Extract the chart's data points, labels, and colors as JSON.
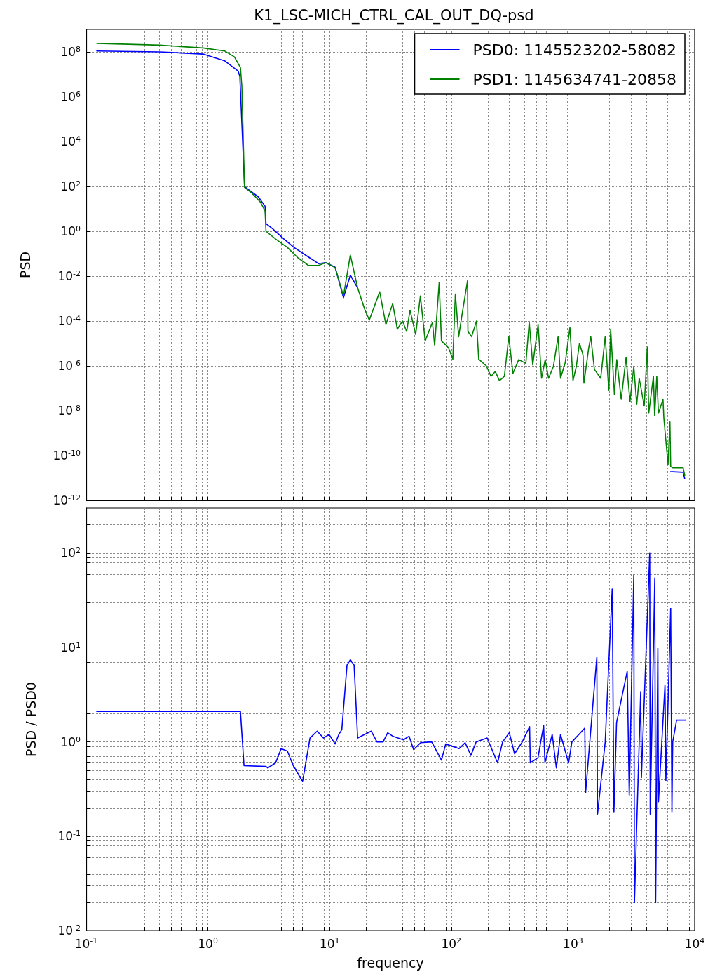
{
  "chart_data": [
    {
      "type": "line",
      "title": "K1_LSC-MICH_CTRL_CAL_OUT_DQ-psd",
      "ylabel": "PSD",
      "log": "xy",
      "grid": true,
      "legend": "top right",
      "tick_labels": "y",
      "xlim": [
        0.1,
        10000
      ],
      "ylim": [
        1e-12,
        1000000000.0
      ],
      "xticks": [
        {
          "value": 0.1,
          "label": null
        },
        {
          "value": 0.2,
          "label": null
        },
        {
          "value": 0.3,
          "label": null
        },
        {
          "value": 0.4,
          "label": null
        },
        {
          "value": 0.5,
          "label": null
        },
        {
          "value": 0.6,
          "label": null
        },
        {
          "value": 0.7,
          "label": null
        },
        {
          "value": 0.8,
          "label": null
        },
        {
          "value": 0.9,
          "label": null
        },
        {
          "value": 1,
          "label": null
        },
        {
          "value": 2,
          "label": null
        },
        {
          "value": 3,
          "label": null
        },
        {
          "value": 4,
          "label": null
        },
        {
          "value": 5,
          "label": null
        },
        {
          "value": 6,
          "label": null
        },
        {
          "value": 7,
          "label": null
        },
        {
          "value": 8,
          "label": null
        },
        {
          "value": 9,
          "label": null
        },
        {
          "value": 10,
          "label": null
        },
        {
          "value": 20,
          "label": null
        },
        {
          "value": 30,
          "label": null
        },
        {
          "value": 40,
          "label": null
        },
        {
          "value": 50,
          "label": null
        },
        {
          "value": 60,
          "label": null
        },
        {
          "value": 70,
          "label": null
        },
        {
          "value": 80,
          "label": null
        },
        {
          "value": 90,
          "label": null
        },
        {
          "value": 100,
          "label": null
        },
        {
          "value": 200,
          "label": null
        },
        {
          "value": 300,
          "label": null
        },
        {
          "value": 400,
          "label": null
        },
        {
          "value": 500,
          "label": null
        },
        {
          "value": 600,
          "label": null
        },
        {
          "value": 700,
          "label": null
        },
        {
          "value": 800,
          "label": null
        },
        {
          "value": 900,
          "label": null
        },
        {
          "value": 1000,
          "label": null
        },
        {
          "value": 2000,
          "label": null
        },
        {
          "value": 3000,
          "label": null
        },
        {
          "value": 4000,
          "label": null
        },
        {
          "value": 5000,
          "label": null
        },
        {
          "value": 6000,
          "label": null
        },
        {
          "value": 7000,
          "label": null
        },
        {
          "value": 8000,
          "label": null
        },
        {
          "value": 9000,
          "label": null
        },
        {
          "value": 10000,
          "label": null
        }
      ],
      "yticks": [
        {
          "value": 1e-12,
          "label": "10$^{-12}$"
        },
        {
          "value": 1e-10,
          "label": "10$^{-10}$"
        },
        {
          "value": 1e-08,
          "label": "10$^{-8}$"
        },
        {
          "value": 1e-06,
          "label": "10$^{-6}$"
        },
        {
          "value": 0.0001,
          "label": "10$^{-4}$"
        },
        {
          "value": 0.01,
          "label": "10$^{-2}$"
        },
        {
          "value": 1,
          "label": "10$^{0}$"
        },
        {
          "value": 100,
          "label": "10$^{2}$"
        },
        {
          "value": 10000.0,
          "label": "10$^{4}$"
        },
        {
          "value": 1000000.0,
          "label": "10$^{6}$"
        },
        {
          "value": 100000000.0,
          "label": "10$^{8}$"
        }
      ],
      "series": [
        {
          "name": "PSD0: 1145523202-58082",
          "color": "#0000ff",
          "x": [
            0.122,
            0.4,
            0.91,
            1.37,
            1.77,
            1.83,
            2.0,
            2.17,
            2.6,
            2.95,
            3.0,
            3.4,
            4.2,
            5.1,
            6.6,
            8.1,
            9.3,
            11.1,
            13,
            14.8,
            17,
            19.4,
            21.2,
            25.8,
            29,
            33,
            36,
            39.7,
            43,
            45.8,
            51,
            55.7,
            61,
            70,
            73,
            79.5,
            83,
            95,
            103,
            108,
            115,
            123,
            136,
            137,
            147,
            161,
            168,
            194,
            212,
            230,
            249,
            273,
            297,
            321,
            358,
            410,
            437,
            467,
            517,
            552,
            591,
            630,
            690,
            755,
            790,
            864,
            944,
            1000,
            1065,
            1130,
            1210,
            1230,
            1345,
            1400,
            1500,
            1690,
            1840,
            1970,
            2040,
            2190,
            2290,
            2490,
            2730,
            2940,
            3160,
            3340,
            3500,
            3850,
            4080,
            4190,
            4580,
            4690,
            4880,
            5040,
            5490,
            5580,
            6040,
            6260,
            6350,
            6600,
            8040,
            8280
          ],
          "values": [
            110000000.0,
            100000000.0,
            80000000.0,
            40000000.0,
            14000000.0,
            8000000.0,
            100,
            70,
            34,
            13,
            2.2,
            1.3,
            0.46,
            0.19,
            0.075,
            0.036,
            0.04,
            0.025,
            0.0011,
            0.011,
            0.003,
            null,
            null,
            null,
            null,
            null,
            null,
            null,
            null,
            null,
            null,
            null,
            null,
            null,
            null,
            null,
            null,
            null,
            null,
            null,
            null,
            null,
            null,
            null,
            null,
            null,
            null,
            null,
            null,
            null,
            null,
            null,
            null,
            null,
            null,
            null,
            null,
            null,
            null,
            null,
            null,
            null,
            null,
            null,
            null,
            null,
            null,
            null,
            null,
            null,
            null,
            null,
            null,
            null,
            null,
            null,
            null,
            null,
            null,
            null,
            null,
            null,
            null,
            null,
            null,
            null,
            null,
            null,
            null,
            null,
            null,
            null,
            null,
            null,
            null,
            null,
            null,
            null,
            1.9e-11,
            1.9e-11,
            1.8e-11,
            9.3e-12
          ]
        },
        {
          "name": "PSD1: 1145634741-20858",
          "color": "#008000",
          "x": [
            0.122,
            0.4,
            0.91,
            1.37,
            1.65,
            1.85,
            1.9,
            2.0,
            2.3,
            2.7,
            2.95,
            3.0,
            3.6,
            4.5,
            5.5,
            6.7,
            8.1,
            9.3,
            11.1,
            13,
            14.8,
            17,
            19.4,
            21.2,
            25.8,
            29,
            33,
            36,
            39.7,
            43,
            45.8,
            51,
            55.7,
            61,
            70,
            73,
            79.5,
            83,
            95,
            103,
            108,
            115,
            123,
            136,
            137,
            147,
            161,
            168,
            194,
            212,
            230,
            249,
            273,
            297,
            321,
            358,
            410,
            437,
            467,
            517,
            552,
            591,
            630,
            690,
            755,
            790,
            864,
            944,
            1000,
            1065,
            1130,
            1210,
            1230,
            1345,
            1400,
            1500,
            1690,
            1840,
            1970,
            2040,
            2190,
            2290,
            2490,
            2730,
            2940,
            3160,
            3340,
            3500,
            3850,
            4080,
            4190,
            4580,
            4690,
            4880,
            5040,
            5490,
            5580,
            6040,
            6260,
            6350,
            6600,
            8040,
            8280
          ],
          "values": [
            240000000.0,
            200000000.0,
            150000000.0,
            110000000.0,
            60000000.0,
            20000000.0,
            3000000.0,
            90,
            50,
            20,
            8,
            1,
            0.45,
            0.19,
            0.065,
            0.03,
            0.03,
            0.04,
            0.024,
            0.0013,
            0.087,
            0.003,
            0.00034,
            0.00011,
            0.002,
            6.9e-05,
            0.0006,
            4.3e-05,
            0.0001,
            3.4e-05,
            0.0003,
            2.5e-05,
            0.0013,
            1.3e-05,
            8.7e-05,
            7.9e-06,
            0.0052,
            1.3e-05,
            6.3e-06,
            2e-06,
            0.0016,
            2e-05,
            0.00022,
            0.0063,
            3.4e-05,
            2e-05,
            0.0001,
            2e-06,
            1e-06,
            3.4e-07,
            5.6e-07,
            2.2e-07,
            3.4e-07,
            2e-05,
            4.6e-07,
            1.9e-06,
            1.3e-06,
            8.7e-05,
            1.1e-06,
            6.9e-05,
            2.8e-07,
            1.9e-06,
            2.8e-07,
            9.3e-07,
            2e-05,
            2.8e-07,
            1.4e-06,
            5.2e-05,
            2.2e-07,
            9.3e-07,
            1e-05,
            3e-06,
            1.7e-07,
            6e-06,
            2e-05,
            6.9e-07,
            2.8e-07,
            2e-05,
            7.9e-08,
            4.3e-05,
            5.2e-08,
            1.9e-06,
            3.2e-08,
            2.4e-06,
            2.5e-08,
            9.3e-07,
            1.9e-08,
            2.8e-07,
            1.6e-08,
            6.9e-06,
            7.6e-09,
            3.4e-07,
            6e-09,
            3.4e-07,
            7.6e-09,
            3.2e-08,
            4.6e-09,
            4e-11,
            3.2e-09,
            3.2e-11,
            2.8e-11,
            2.8e-11,
            1.3e-11
          ]
        }
      ]
    },
    {
      "type": "line",
      "xlabel": "frequency",
      "ylabel": "PSD / PSD0",
      "log": "xy",
      "grid": true,
      "xlim": [
        0.1,
        10000
      ],
      "ylim": [
        0.01,
        300
      ],
      "xticks": [
        {
          "value": 0.1,
          "label": "10$^{-1}$"
        },
        {
          "value": 0.2,
          "label": null
        },
        {
          "value": 0.3,
          "label": null
        },
        {
          "value": 0.4,
          "label": null
        },
        {
          "value": 0.5,
          "label": null
        },
        {
          "value": 0.6,
          "label": null
        },
        {
          "value": 0.7,
          "label": null
        },
        {
          "value": 0.8,
          "label": null
        },
        {
          "value": 0.9,
          "label": null
        },
        {
          "value": 1,
          "label": "10$^{0}$"
        },
        {
          "value": 2,
          "label": null
        },
        {
          "value": 3,
          "label": null
        },
        {
          "value": 4,
          "label": null
        },
        {
          "value": 5,
          "label": null
        },
        {
          "value": 6,
          "label": null
        },
        {
          "value": 7,
          "label": null
        },
        {
          "value": 8,
          "label": null
        },
        {
          "value": 9,
          "label": null
        },
        {
          "value": 10,
          "label": "10$^{1}$"
        },
        {
          "value": 20,
          "label": null
        },
        {
          "value": 30,
          "label": null
        },
        {
          "value": 40,
          "label": null
        },
        {
          "value": 50,
          "label": null
        },
        {
          "value": 60,
          "label": null
        },
        {
          "value": 70,
          "label": null
        },
        {
          "value": 80,
          "label": null
        },
        {
          "value": 90,
          "label": null
        },
        {
          "value": 100,
          "label": "10$^{2}$"
        },
        {
          "value": 200,
          "label": null
        },
        {
          "value": 300,
          "label": null
        },
        {
          "value": 400,
          "label": null
        },
        {
          "value": 500,
          "label": null
        },
        {
          "value": 600,
          "label": null
        },
        {
          "value": 700,
          "label": null
        },
        {
          "value": 800,
          "label": null
        },
        {
          "value": 900,
          "label": null
        },
        {
          "value": 1000,
          "label": "10$^{3}$"
        },
        {
          "value": 2000,
          "label": null
        },
        {
          "value": 3000,
          "label": null
        },
        {
          "value": 4000,
          "label": null
        },
        {
          "value": 5000,
          "label": null
        },
        {
          "value": 6000,
          "label": null
        },
        {
          "value": 7000,
          "label": null
        },
        {
          "value": 8000,
          "label": null
        },
        {
          "value": 9000,
          "label": null
        },
        {
          "value": 10000,
          "label": "10$^{4}$"
        }
      ],
      "yticks": [
        {
          "value": 0.01,
          "label": "10$^{-2}$"
        },
        {
          "value": 0.02,
          "label": null
        },
        {
          "value": 0.03,
          "label": null
        },
        {
          "value": 0.04,
          "label": null
        },
        {
          "value": 0.05,
          "label": null
        },
        {
          "value": 0.06,
          "label": null
        },
        {
          "value": 0.07,
          "label": null
        },
        {
          "value": 0.08,
          "label": null
        },
        {
          "value": 0.09,
          "label": null
        },
        {
          "value": 0.1,
          "label": "10$^{-1}$"
        },
        {
          "value": 0.2,
          "label": null
        },
        {
          "value": 0.3,
          "label": null
        },
        {
          "value": 0.4,
          "label": null
        },
        {
          "value": 0.5,
          "label": null
        },
        {
          "value": 0.6,
          "label": null
        },
        {
          "value": 0.7,
          "label": null
        },
        {
          "value": 0.8,
          "label": null
        },
        {
          "value": 0.9,
          "label": null
        },
        {
          "value": 1,
          "label": "10$^{0}$"
        },
        {
          "value": 2,
          "label": null
        },
        {
          "value": 3,
          "label": null
        },
        {
          "value": 4,
          "label": null
        },
        {
          "value": 5,
          "label": null
        },
        {
          "value": 6,
          "label": null
        },
        {
          "value": 7,
          "label": null
        },
        {
          "value": 8,
          "label": null
        },
        {
          "value": 9,
          "label": null
        },
        {
          "value": 10,
          "label": "10$^{1}$"
        },
        {
          "value": 20,
          "label": null
        },
        {
          "value": 30,
          "label": null
        },
        {
          "value": 40,
          "label": null
        },
        {
          "value": 50,
          "label": null
        },
        {
          "value": 60,
          "label": null
        },
        {
          "value": 70,
          "label": null
        },
        {
          "value": 80,
          "label": null
        },
        {
          "value": 90,
          "label": null
        },
        {
          "value": 100,
          "label": "10$^{2}$"
        },
        {
          "value": 200,
          "label": null
        }
      ],
      "series": [
        {
          "color": "#0000ff",
          "x": [
            0.122,
            1.85,
            1.98,
            3.0,
            3.1,
            3.6,
            4.0,
            4.5,
            5.0,
            6.0,
            6.9,
            7.9,
            8.9,
            9.9,
            11.1,
            11.9,
            12.6,
            13.9,
            14.8,
            15.9,
            17,
            19.4,
            22,
            24.5,
            27.5,
            30,
            33,
            40.5,
            45,
            49,
            56,
            69,
            83,
            90,
            116,
            130,
            145,
            160,
            197,
            240,
            264,
            300,
            331,
            380,
            440,
            446,
            516,
            574,
            588,
            675,
            730,
            790,
            920,
            980,
            1250,
            1270,
            1390,
            1570,
            1590,
            1840,
            2100,
            2170,
            2280,
            2790,
            2900,
            3160,
            3200,
            3600,
            3650,
            4270,
            4310,
            4700,
            4780,
            4980,
            5040,
            5700,
            5800,
            6350,
            6500,
            6600,
            7100,
            8500
          ],
          "values": [
            2.1,
            2.1,
            0.56,
            0.55,
            0.53,
            0.6,
            0.85,
            0.8,
            0.57,
            0.38,
            1.1,
            1.3,
            1.1,
            1.2,
            0.95,
            1.2,
            1.35,
            6.5,
            7.4,
            6.5,
            1.1,
            1.2,
            1.3,
            1.0,
            1.0,
            1.25,
            1.15,
            1.05,
            1.15,
            0.83,
            0.98,
            1.0,
            0.64,
            0.95,
            0.85,
            0.98,
            0.72,
            1.0,
            1.1,
            0.6,
            1.0,
            1.25,
            0.75,
            0.98,
            1.45,
            0.6,
            0.68,
            1.5,
            0.6,
            1.2,
            0.53,
            1.2,
            0.6,
            1.0,
            1.4,
            0.29,
            1.2,
            7.9,
            0.17,
            1.0,
            42,
            0.18,
            1.6,
            5.6,
            0.27,
            58,
            0.02,
            3.4,
            0.42,
            100,
            0.17,
            54,
            0.02,
            9.8,
            0.23,
            4,
            0.39,
            26,
            0.18,
            1.0,
            1.7,
            1.7
          ]
        }
      ]
    }
  ]
}
